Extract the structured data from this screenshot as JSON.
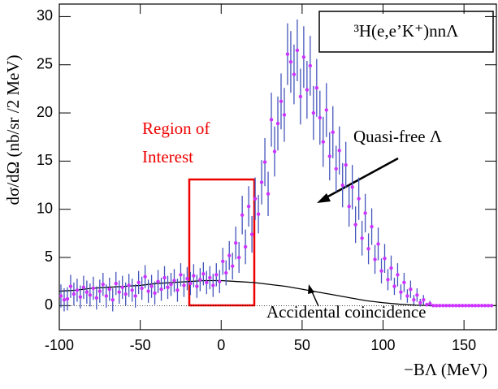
{
  "chart_data": {
    "type": "errorbar",
    "title": "³H(e,e’K⁺)nnΛ",
    "xlabel": "−BΛ (MeV)",
    "ylabel": "dσ/dΩ (nb/sr /2 MeV)",
    "annotations": [
      "Region of",
      "Interest",
      "Quasi-free Λ",
      "Accidental coincidence"
    ],
    "xlim": [
      -100,
      170
    ],
    "ylim": [
      -2.5,
      31.3
    ],
    "xticks": [
      -100,
      -50,
      0,
      50,
      100,
      150
    ],
    "yticks": [
      0,
      5,
      10,
      15,
      20,
      25,
      30
    ],
    "color": "#cc33ff",
    "error_color": "#4455bb",
    "x": [
      -99,
      -97,
      -95,
      -93,
      -91,
      -89,
      -87,
      -85,
      -83,
      -81,
      -79,
      -77,
      -75,
      -73,
      -71,
      -69,
      -67,
      -65,
      -63,
      -61,
      -59,
      -57,
      -55,
      -53,
      -51,
      -49,
      -47,
      -45,
      -43,
      -41,
      -39,
      -37,
      -35,
      -33,
      -31,
      -29,
      -27,
      -25,
      -23,
      -21,
      -19,
      -17,
      -15,
      -13,
      -11,
      -9,
      -7,
      -5,
      -3,
      -1,
      1,
      3,
      5,
      7,
      9,
      11,
      13,
      15,
      17,
      19,
      21,
      23,
      25,
      27,
      29,
      31,
      33,
      35,
      37,
      39,
      41,
      43,
      45,
      47,
      49,
      51,
      53,
      55,
      57,
      59,
      61,
      63,
      65,
      67,
      69,
      71,
      73,
      75,
      77,
      79,
      81,
      83,
      85,
      87,
      89,
      91,
      93,
      95,
      97,
      99,
      101,
      103,
      105,
      107,
      109,
      111,
      113,
      115,
      117,
      119,
      121,
      123,
      125,
      127,
      129,
      131,
      133,
      135,
      137,
      139,
      141,
      143,
      145,
      147,
      149,
      151,
      153,
      155,
      157,
      159,
      161,
      163,
      165,
      167
    ],
    "values": [
      1.0,
      0.6,
      0.7,
      2.0,
      1.2,
      1.6,
      0.9,
      1.9,
      1.4,
      1.1,
      1.8,
      0.8,
      1.5,
      2.2,
      1.0,
      1.7,
      0.6,
      2.3,
      1.4,
      1.9,
      1.2,
      2.1,
      1.6,
      1.0,
      2.4,
      1.8,
      3.0,
      1.5,
      2.0,
      1.3,
      2.5,
      1.7,
      2.9,
      1.9,
      2.2,
      2.6,
      1.6,
      3.2,
      2.1,
      2.8,
      2.3,
      3.1,
      2.0,
      2.7,
      3.3,
      2.4,
      2.9,
      2.1,
      3.2,
      2.5,
      4.6,
      3.4,
      5.2,
      4.1,
      6.5,
      5.0,
      9.4,
      6.1,
      10.3,
      7.4,
      11.1,
      9.5,
      12.8,
      14.9,
      11.6,
      19.3,
      16.0,
      18.9,
      21.2,
      19.8,
      26.1,
      25.3,
      24.0,
      26.5,
      21.7,
      25.8,
      22.4,
      24.9,
      20.0,
      22.6,
      19.5,
      17.0,
      20.3,
      15.5,
      18.0,
      14.2,
      16.1,
      12.5,
      14.6,
      10.3,
      12.3,
      8.4,
      11.1,
      7.0,
      9.6,
      5.9,
      8.2,
      4.8,
      6.4,
      3.6,
      4.9,
      2.7,
      3.9,
      2.0,
      3.2,
      1.4,
      2.4,
      1.0,
      1.7,
      0.6,
      1.1,
      0.3,
      0.6,
      0.1,
      0.2,
      0,
      0,
      0,
      0,
      0,
      0,
      0,
      0,
      0,
      0,
      0,
      0,
      0,
      0,
      0,
      0,
      0,
      0,
      0
    ],
    "errors": [
      1.2,
      1.2,
      1.2,
      1.2,
      1.2,
      1.2,
      1.2,
      1.2,
      1.2,
      1.2,
      1.2,
      1.2,
      1.2,
      1.2,
      1.2,
      1.2,
      1.2,
      1.2,
      1.2,
      1.2,
      1.2,
      1.2,
      1.2,
      1.2,
      1.2,
      1.2,
      1.2,
      1.2,
      1.2,
      1.2,
      1.2,
      1.2,
      1.2,
      1.2,
      1.2,
      1.2,
      1.2,
      1.2,
      1.2,
      1.2,
      1.2,
      1.2,
      1.2,
      1.2,
      1.2,
      1.2,
      1.2,
      1.2,
      1.2,
      1.2,
      1.4,
      1.3,
      1.5,
      1.4,
      1.7,
      1.6,
      2.0,
      1.8,
      2.1,
      1.9,
      2.2,
      2.0,
      2.3,
      2.5,
      2.3,
      2.8,
      2.6,
      2.8,
      2.9,
      2.8,
      3.2,
      3.2,
      3.1,
      3.2,
      2.9,
      3.2,
      3.0,
      3.1,
      2.8,
      3.0,
      2.8,
      2.6,
      2.8,
      2.5,
      2.7,
      2.4,
      2.5,
      2.3,
      2.4,
      2.1,
      2.3,
      1.9,
      2.2,
      1.8,
      2.0,
      1.6,
      1.9,
      1.5,
      1.7,
      1.3,
      1.5,
      1.1,
      1.3,
      0.9,
      1.2,
      0.8,
      1.0,
      0.7,
      0.9,
      0.5,
      0.7,
      0.4,
      0.5,
      0.2,
      0.3,
      0,
      0,
      0,
      0,
      0,
      0,
      0,
      0,
      0,
      0,
      0,
      0,
      0,
      0,
      0,
      0,
      0,
      0,
      0
    ],
    "background": {
      "color": "#000000",
      "x": [
        -100,
        -90,
        -80,
        -70,
        -60,
        -50,
        -40,
        -30,
        -20,
        -10,
        0,
        10,
        20,
        30,
        40,
        50,
        60,
        70,
        80,
        90,
        100,
        110,
        120,
        130,
        140,
        150,
        160,
        170
      ],
      "values": [
        1.5,
        1.6,
        1.8,
        1.9,
        2.0,
        2.1,
        2.3,
        2.4,
        2.5,
        2.6,
        2.6,
        2.5,
        2.4,
        2.2,
        2.0,
        1.7,
        1.4,
        1.1,
        0.8,
        0.5,
        0.3,
        0.15,
        0.05,
        0,
        0,
        0,
        0,
        0
      ]
    }
  }
}
